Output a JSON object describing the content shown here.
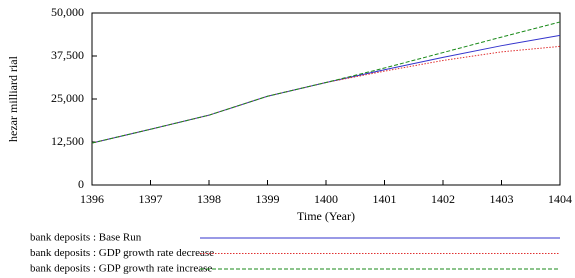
{
  "chart_data": {
    "type": "line",
    "y_label": "hezar milliard rial",
    "x_label": "Time (Year)",
    "x": [
      1396,
      1397,
      1398,
      1399,
      1400,
      1401,
      1402,
      1403,
      1404
    ],
    "xlim": [
      1396,
      1404
    ],
    "xticks": [
      1396,
      1397,
      1398,
      1399,
      1400,
      1401,
      1402,
      1403,
      1404
    ],
    "ylim": [
      0,
      50000
    ],
    "yticks": [
      0,
      {
        "value": 12500,
        "label": "12,500"
      },
      {
        "value": 25000,
        "label": "25,000"
      },
      {
        "value": 37500,
        "label": "37,500"
      },
      {
        "value": 50000,
        "label": "50,000"
      }
    ],
    "grid": false,
    "series": [
      {
        "name": "bank deposits : Base Run",
        "color": "#3333cc",
        "style": "solid",
        "values": [
          12200,
          16200,
          20300,
          25800,
          29800,
          33500,
          37100,
          40500,
          43500
        ]
      },
      {
        "name": "bank deposits : GDP growth rate decrease",
        "color": "#e03030",
        "style": "dotted",
        "values": [
          12200,
          16200,
          20300,
          25800,
          29800,
          33100,
          36200,
          38700,
          40300
        ]
      },
      {
        "name": "bank deposits : GDP growth rate increase",
        "color": "#1a8a1a",
        "style": "dashed",
        "values": [
          12200,
          16200,
          20300,
          25800,
          29800,
          34000,
          38500,
          43000,
          47400
        ]
      }
    ]
  }
}
